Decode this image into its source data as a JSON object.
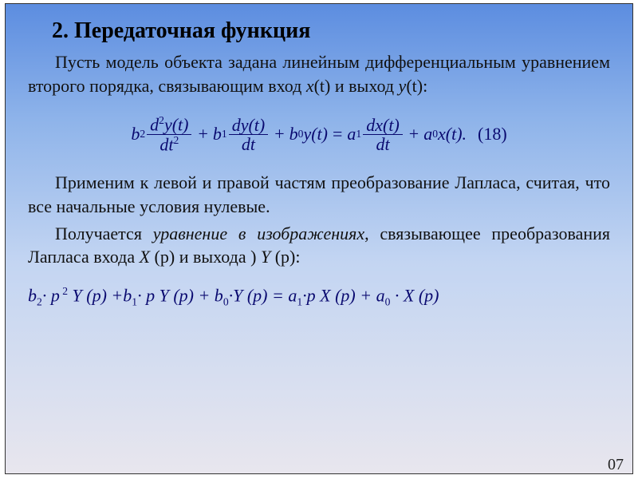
{
  "styling": {
    "slide_width": 788,
    "slide_height": 590,
    "border_color": "#333333",
    "background_gradient": [
      "#5c8de0",
      "#8fb4ea",
      "#c3d5f2",
      "#e8e6ee"
    ],
    "text_color": "#111111",
    "math_color": "#0a0a70",
    "font_family": "Times New Roman",
    "title_fontsize": 28,
    "body_fontsize": 22,
    "math_fontsize": 22
  },
  "title": "2. Передаточная функция",
  "para1_a": "Пусть модель объекта задана линейным дифференциальным уравнением второго порядка, связывающим вход ",
  "para1_x": "x",
  "para1_t1": "(t)",
  "para1_mid": " и выход ",
  "para1_y": "y",
  "para1_t2": "(t)",
  "para1_end": ":",
  "equation18": {
    "b2": "b",
    "b2_sub": "2",
    "num1_a": "d",
    "num1_sup": "2",
    "num1_b": "y(t)",
    "den1_a": "dt",
    "den1_sup": "2",
    "plus1": "+",
    "b1": "b",
    "b1_sub": "1",
    "num2": "dy(t)",
    "den2": "dt",
    "plus2": "+",
    "b0": "b",
    "b0_sub": "0",
    "b0_y": "y(t)",
    "eq": "=",
    "a1": "a",
    "a1_sub": "1",
    "num3": "dx(t)",
    "den3": "dt",
    "plus3": "+",
    "a0": "a",
    "a0_sub": "0",
    "a0_x": "x(t).",
    "number": "(18)"
  },
  "para2": "Применим к левой и правой частям преобразование Лапласа, считая, что все начальные условия нулевые.",
  "para3_a": "Получается ",
  "para3_em": "уравнение в изображениях",
  "para3_b": ", связывающее преобразования Лапласа входа ",
  "para3_X": "X",
  "para3_p1": " (p)",
  "para3_mid": " и выхода ) ",
  "para3_Y": "Y",
  "para3_p2": " (p)",
  "para3_end": ":",
  "equation2": "b₂· p ² Y (p) + b₁· p Y (p) + b₀·Y (p) = a₁·p X (p) + a₀ · X (p)",
  "eq2": {
    "t1": "b",
    "s1": "2",
    "t2": "· p",
    "s2": " 2",
    "t3": " Y (p) +b",
    "s3": "1",
    "t4": "· p Y (p) + b",
    "s4": "0",
    "t5": "·Y (p) = a",
    "s5": "1",
    "t6": "·p X (p) + a",
    "s6": "0",
    "t7": " · X (p)"
  },
  "page_number": "07"
}
